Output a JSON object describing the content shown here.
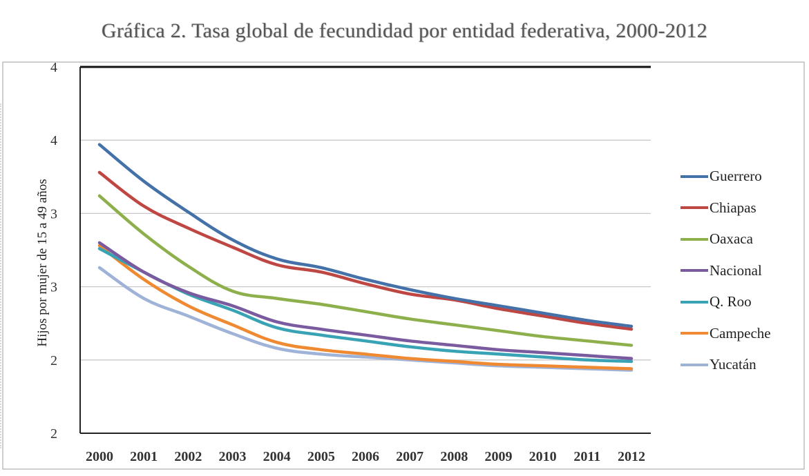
{
  "chart_data": {
    "type": "line",
    "title": "Gráfica 2. Tasa global de fecundidad por entidad federativa, 2000-2012",
    "ylabel": "Hijos por mujer de 15 a 49 años",
    "xlabel": "",
    "categories": [
      "2000",
      "2001",
      "2002",
      "2003",
      "2004",
      "2005",
      "2006",
      "2007",
      "2008",
      "2009",
      "2010",
      "2011",
      "2012"
    ],
    "y_ticks": [
      {
        "label": "2",
        "value": 1.5
      },
      {
        "label": "2",
        "value": 2.0
      },
      {
        "label": "3",
        "value": 2.5
      },
      {
        "label": "3",
        "value": 3.0
      },
      {
        "label": "4",
        "value": 3.5
      },
      {
        "label": "4",
        "value": 4.0
      }
    ],
    "ylim": [
      1.5,
      4.0
    ],
    "grid": true,
    "legend_position": "right",
    "series": [
      {
        "name": "Guerrero",
        "color": "#4472a8",
        "values": [
          3.47,
          3.22,
          3.01,
          2.82,
          2.69,
          2.63,
          2.55,
          2.48,
          2.42,
          2.37,
          2.32,
          2.27,
          2.23
        ]
      },
      {
        "name": "Chiapas",
        "color": "#bf4743",
        "values": [
          3.28,
          3.05,
          2.9,
          2.77,
          2.65,
          2.6,
          2.52,
          2.45,
          2.41,
          2.35,
          2.3,
          2.25,
          2.21
        ]
      },
      {
        "name": "Oaxaca",
        "color": "#8db04c",
        "values": [
          3.12,
          2.86,
          2.64,
          2.47,
          2.42,
          2.38,
          2.33,
          2.28,
          2.24,
          2.2,
          2.16,
          2.13,
          2.1
        ]
      },
      {
        "name": "Nacional",
        "color": "#7a5b9f",
        "values": [
          2.8,
          2.6,
          2.46,
          2.37,
          2.26,
          2.21,
          2.17,
          2.13,
          2.1,
          2.07,
          2.05,
          2.03,
          2.01
        ]
      },
      {
        "name": "Q. Roo",
        "color": "#39a3b6",
        "values": [
          2.76,
          2.6,
          2.45,
          2.34,
          2.22,
          2.17,
          2.13,
          2.09,
          2.06,
          2.04,
          2.02,
          2.0,
          1.99
        ]
      },
      {
        "name": "Campeche",
        "color": "#ef8a33",
        "values": [
          2.78,
          2.55,
          2.37,
          2.24,
          2.12,
          2.07,
          2.04,
          2.01,
          1.99,
          1.97,
          1.96,
          1.95,
          1.94
        ]
      },
      {
        "name": "Yucatán",
        "color": "#9fb2d8",
        "values": [
          2.63,
          2.42,
          2.3,
          2.18,
          2.08,
          2.04,
          2.02,
          2.0,
          1.98,
          1.96,
          1.95,
          1.94,
          1.93
        ]
      }
    ]
  }
}
